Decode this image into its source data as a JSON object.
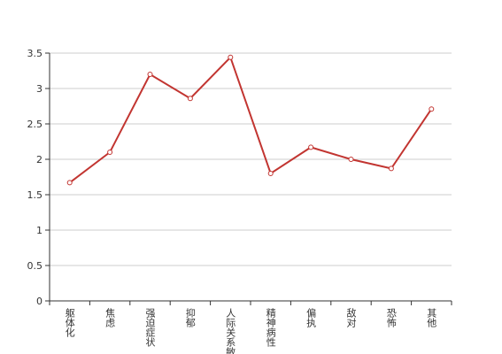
{
  "chart_data": {
    "type": "line",
    "categories": [
      "躯体化",
      "焦虑",
      "强迫症状",
      "抑郁",
      "人际关系敏感",
      "精神病性",
      "偏执",
      "敌对",
      "恐怖",
      "其他"
    ],
    "values": [
      1.67,
      2.1,
      3.2,
      2.86,
      3.44,
      1.8,
      2.17,
      2.0,
      1.87,
      2.71
    ],
    "color": "#c23531",
    "ylim": [
      0,
      3.5
    ],
    "yticks": [
      0,
      0.5,
      1,
      1.5,
      2,
      2.5,
      3,
      3.5
    ],
    "grid": true
  }
}
